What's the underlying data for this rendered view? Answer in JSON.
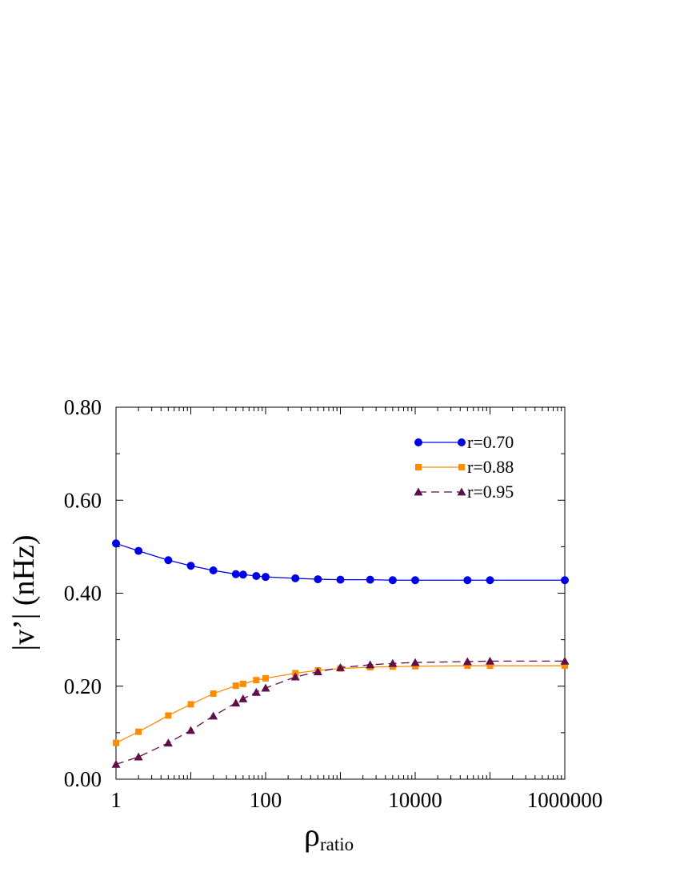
{
  "chart_data": {
    "type": "line",
    "xscale": "log",
    "xlabel_main": "ρ",
    "xlabel_sub": "ratio",
    "ylabel": "|v’| (nHz)",
    "xlim": [
      1,
      1000000
    ],
    "ylim": [
      0,
      0.8
    ],
    "xticks": [
      {
        "value": 1,
        "label": "1"
      },
      {
        "value": 100,
        "label": "100"
      },
      {
        "value": 10000,
        "label": "10000"
      },
      {
        "value": 1000000,
        "label": "1000000"
      }
    ],
    "yticks": [
      {
        "value": 0.0,
        "label": "0.00"
      },
      {
        "value": 0.2,
        "label": "0.20"
      },
      {
        "value": 0.4,
        "label": "0.40"
      },
      {
        "value": 0.6,
        "label": "0.60"
      },
      {
        "value": 0.8,
        "label": "0.80"
      }
    ],
    "legend_position": "top-right",
    "series": [
      {
        "name": "r=0.70",
        "color": "#0000e6",
        "marker": "circle",
        "dash": "",
        "x": [
          1,
          2,
          5,
          10,
          20,
          40,
          50,
          75,
          100,
          250,
          500,
          1000,
          2500,
          5000,
          10000,
          50000,
          100000,
          1000000
        ],
        "y": [
          0.507,
          0.491,
          0.471,
          0.459,
          0.449,
          0.441,
          0.44,
          0.437,
          0.435,
          0.432,
          0.43,
          0.429,
          0.429,
          0.428,
          0.428,
          0.428,
          0.428,
          0.428
        ]
      },
      {
        "name": "r=0.88",
        "color": "#ff8c00",
        "marker": "square",
        "dash": "",
        "x": [
          1,
          2,
          5,
          10,
          20,
          40,
          50,
          75,
          100,
          250,
          500,
          1000,
          2500,
          5000,
          10000,
          50000,
          100000,
          1000000
        ],
        "y": [
          0.078,
          0.102,
          0.137,
          0.161,
          0.184,
          0.201,
          0.205,
          0.213,
          0.217,
          0.228,
          0.234,
          0.238,
          0.241,
          0.242,
          0.243,
          0.244,
          0.244,
          0.244
        ]
      },
      {
        "name": "r=0.95",
        "color": "#5c0f4a",
        "marker": "triangle",
        "dash": "10,6",
        "x": [
          1,
          2,
          5,
          10,
          20,
          40,
          50,
          75,
          100,
          250,
          500,
          1000,
          2500,
          5000,
          10000,
          50000,
          100000,
          1000000
        ],
        "y": [
          0.032,
          0.048,
          0.078,
          0.105,
          0.136,
          0.164,
          0.173,
          0.187,
          0.196,
          0.22,
          0.231,
          0.24,
          0.246,
          0.249,
          0.251,
          0.253,
          0.254,
          0.254
        ]
      }
    ]
  }
}
